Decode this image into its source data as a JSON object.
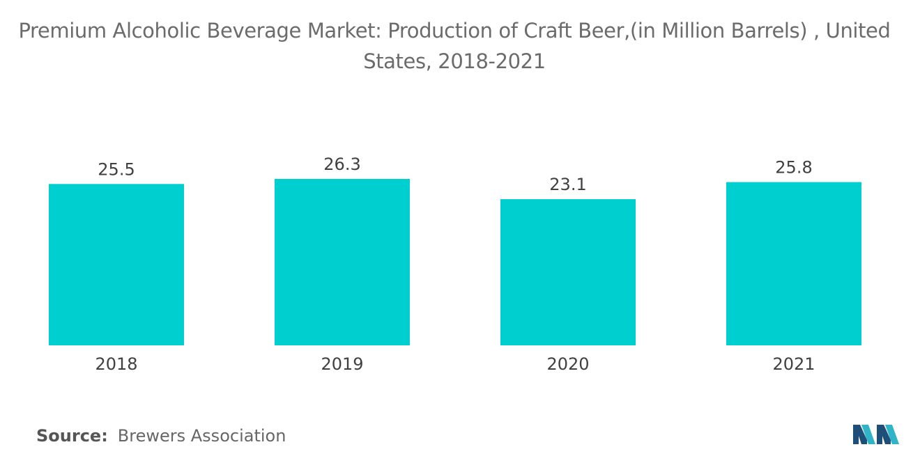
{
  "chart_data": {
    "type": "bar",
    "title": "Premium Alcoholic Beverage Market: Production of Craft Beer,(in Million Barrels) , United States, 2018-2021",
    "categories": [
      "2018",
      "2019",
      "2020",
      "2021"
    ],
    "values": [
      25.5,
      26.3,
      23.1,
      25.8
    ],
    "value_labels": [
      "25.5",
      "26.3",
      "23.1",
      "25.8"
    ],
    "xlabel": "",
    "ylabel": "",
    "ylim": [
      0,
      26.3
    ],
    "grid": false,
    "legend": "none",
    "bar_color": "#00cfd0"
  },
  "source": {
    "label": "Source:",
    "value": "Brewers Association"
  },
  "logo": {
    "icon": "mordor-intelligence-logo-icon",
    "colors": [
      "#1f4e79",
      "#2fb5c7"
    ]
  }
}
